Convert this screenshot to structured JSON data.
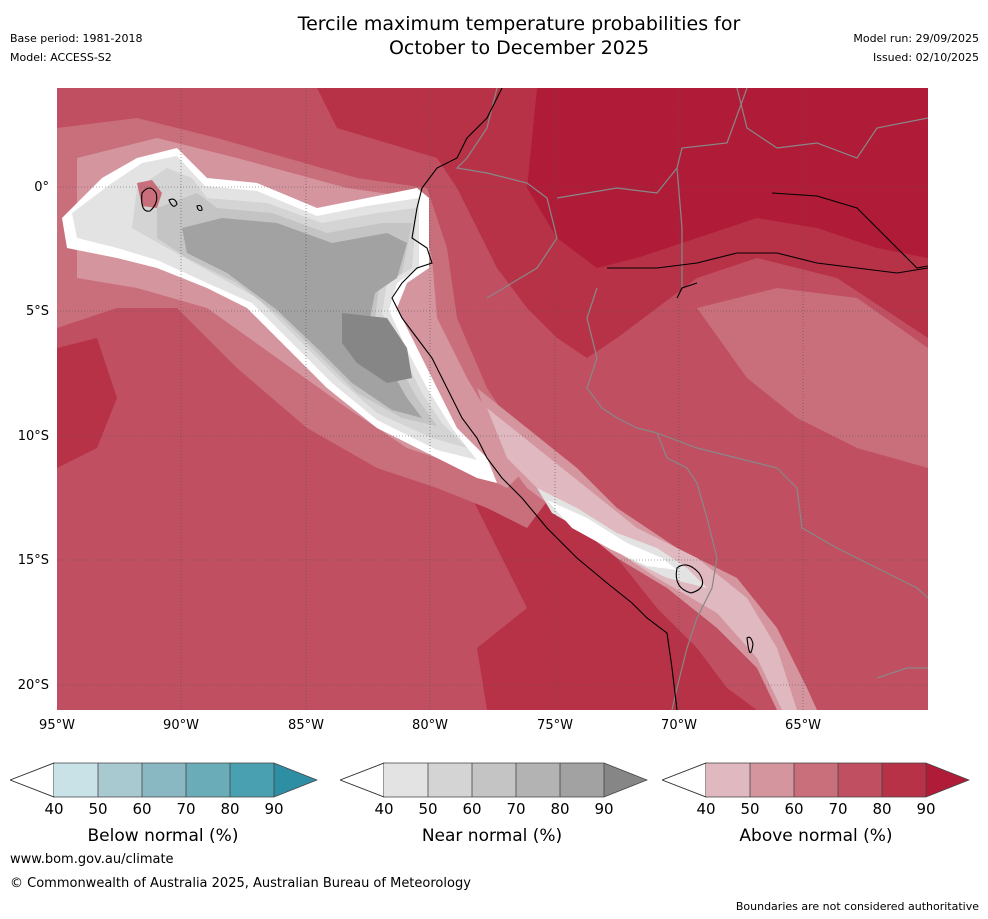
{
  "header": {
    "title_line1": "Tercile maximum temperature probabilities for",
    "title_line2": "October to December 2025",
    "base_period": "Base period: 1981-2018",
    "model": "Model: ACCESS-S2",
    "model_run": "Model run: 29/09/2025",
    "issued": "Issued: 02/10/2025"
  },
  "map": {
    "lat_labels": [
      "0°",
      "5°S",
      "10°S",
      "15°S",
      "20°S"
    ],
    "lon_labels": [
      "95°W",
      "90°W",
      "85°W",
      "80°W",
      "75°W",
      "70°W",
      "65°W"
    ]
  },
  "legends": [
    {
      "title": "Below normal (%)",
      "ticks": [
        "40",
        "50",
        "60",
        "70",
        "80",
        "90"
      ],
      "colors": [
        "#ffffff",
        "#c8e2e8",
        "#a8c9cf",
        "#89b7c2",
        "#6aacb8",
        "#48a0b0",
        "#2e8ea3"
      ]
    },
    {
      "title": "Near normal (%)",
      "ticks": [
        "40",
        "50",
        "60",
        "70",
        "80",
        "90"
      ],
      "colors": [
        "#ffffff",
        "#e3e3e3",
        "#d4d4d4",
        "#c4c4c4",
        "#b3b3b3",
        "#a2a2a2",
        "#868686"
      ]
    },
    {
      "title": "Above normal (%)",
      "ticks": [
        "40",
        "50",
        "60",
        "70",
        "80",
        "90"
      ],
      "colors": [
        "#ffffff",
        "#e0b8bf",
        "#d4959e",
        "#c96e7b",
        "#c04f61",
        "#b73247",
        "#b01c38"
      ]
    }
  ],
  "footer": {
    "website": "www.bom.gov.au/climate",
    "copyright": "© Commonwealth of Australia 2025, Australian Bureau of Meteorology",
    "disclaimer": "Boundaries are not considered authoritative"
  }
}
